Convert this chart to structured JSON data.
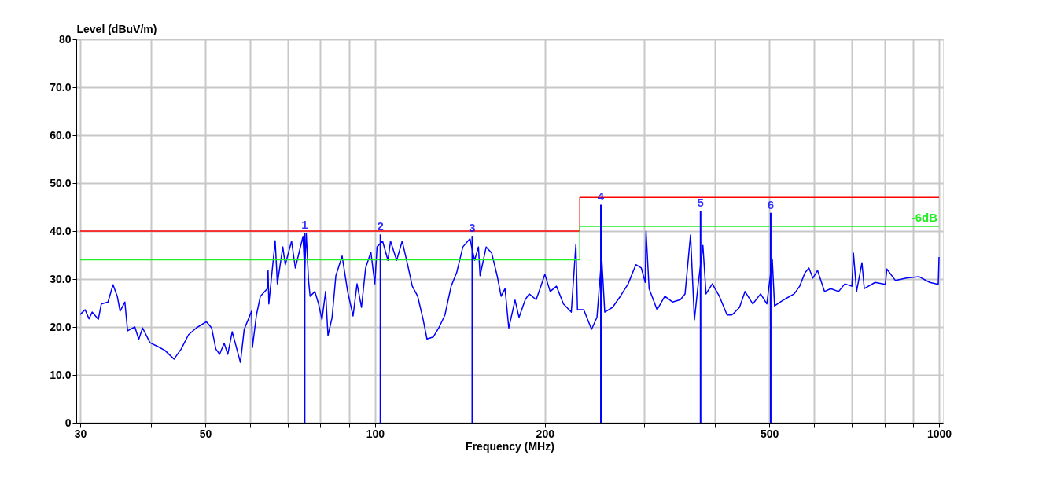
{
  "chart_data": {
    "type": "line",
    "xlabel": "Frequency (MHz)",
    "ylabel": "Level (dBuV/m)",
    "log": "x",
    "xlim": [
      30,
      1000
    ],
    "xticks": [
      30,
      {
        "value": 40,
        "label": null
      },
      50,
      {
        "value": 60,
        "label": null
      },
      {
        "value": 70,
        "label": null
      },
      {
        "value": 80,
        "label": null
      },
      {
        "value": 90,
        "label": null
      },
      100,
      200,
      {
        "value": 300,
        "label": null
      },
      {
        "value": 400,
        "label": null
      },
      500,
      {
        "value": 600,
        "label": null
      },
      {
        "value": 700,
        "label": null
      },
      {
        "value": 800,
        "label": null
      },
      {
        "value": 900,
        "label": null
      },
      1000
    ],
    "ylim": [
      0,
      80
    ],
    "yticks": [
      0,
      {
        "value": 10,
        "label": "10.0"
      },
      {
        "value": 20,
        "label": "20.0"
      },
      {
        "value": 30,
        "label": "30.0"
      },
      {
        "value": 40,
        "label": "40.0"
      },
      {
        "value": 50,
        "label": "50.0"
      },
      {
        "value": 60,
        "label": "60.0"
      },
      {
        "value": 70,
        "label": "70.0"
      },
      80
    ],
    "grid": true,
    "line_style": "solid",
    "marker": "none",
    "series": [
      {
        "type": "line",
        "color": "#0000ff",
        "x": [
          30,
          30.6,
          31.1,
          31.5,
          32.3,
          32.7,
          33.6,
          34.3,
          34.9,
          35.3,
          36.0,
          36.4,
          37.5,
          38.1,
          38.7,
          39.9,
          41.2,
          42.4,
          44.0,
          45.3,
          46.7,
          48.2,
          50.2,
          51.3,
          52.2,
          53.0,
          54.0,
          54.8,
          55.8,
          57.7,
          58.6,
          60.4,
          60.6,
          61.6,
          62.6,
          64.4,
          64.6,
          64.8,
          66.5,
          67.1,
          68.6,
          69.3,
          71.1,
          72.2,
          74.5,
          75.0,
          75.5,
          76.2,
          76.7,
          78.2,
          79.4,
          80.5,
          81.7,
          82.5,
          83.9,
          85.2,
          87.4,
          89.4,
          91.4,
          92.9,
          94.6,
          96.2,
          98.3,
          99.9,
          100.8,
          103.1,
          105.4,
          106.5,
          109.2,
          111.7,
          114.2,
          116.4,
          119.0,
          121.7,
          123.6,
          126.8,
          129.7,
          133.0,
          136.4,
          139.5,
          143.1,
          147.3,
          150.1,
          152.5,
          153.5,
          157.4,
          161.0,
          164.6,
          167.3,
          170.0,
          172.6,
          177.1,
          180.0,
          184.6,
          187.6,
          193.0,
          196.1,
          200.0,
          204.4,
          209.7,
          215.8,
          222.8,
          227.0,
          228.5,
          234.4,
          242.0,
          247.4,
          252.2,
          255.4,
          263.7,
          272.2,
          281.0,
          290.0,
          296.5,
          301.3,
          302.3,
          306.1,
          316.2,
          326.4,
          337.0,
          347.8,
          354.5,
          362.5,
          368.3,
          374.1,
          381.3,
          386.2,
          396.3,
          407.8,
          420.9,
          429.0,
          434.6,
          442.8,
          452.9,
          467.4,
          482.6,
          495.0,
          506.2,
          510.9,
          531.0,
          553.5,
          566.0,
          578.5,
          587.9,
          597.3,
          608.9,
          626.5,
          642.6,
          663.6,
          680.7,
          700.6,
          705.1,
          714.1,
          730.0,
          737.0,
          770.4,
          803.1,
          808.1,
          837.0,
          875.1,
          920.8,
          962.7,
          996.8,
          1000
        ],
        "values": [
          22.6,
          23.6,
          21.7,
          23.1,
          21.6,
          24.8,
          25.2,
          28.8,
          26.4,
          23.3,
          25.2,
          19.2,
          20.0,
          17.4,
          19.8,
          16.7,
          15.9,
          15.1,
          13.3,
          15.4,
          18.4,
          19.8,
          21.1,
          19.8,
          15.4,
          14.3,
          16.6,
          14.3,
          19.0,
          12.6,
          19.5,
          23.3,
          15.7,
          22.5,
          26.4,
          28.0,
          31.8,
          24.8,
          38.0,
          29.0,
          36.7,
          33.0,
          37.9,
          32.3,
          38.9,
          31.8,
          39.5,
          29.7,
          26.4,
          27.4,
          24.8,
          21.5,
          27.4,
          18.2,
          22.0,
          30.7,
          34.8,
          27.4,
          22.3,
          29.0,
          24.1,
          32.3,
          35.6,
          29.0,
          36.7,
          37.9,
          33.9,
          37.9,
          33.9,
          37.9,
          33.0,
          28.5,
          26.4,
          21.5,
          17.5,
          17.9,
          19.8,
          22.5,
          28.5,
          31.3,
          36.7,
          38.4,
          33.9,
          36.7,
          30.7,
          36.7,
          35.4,
          30.7,
          26.4,
          28.0,
          19.8,
          25.6,
          22.0,
          25.7,
          26.9,
          25.7,
          28.0,
          31.0,
          27.4,
          28.5,
          24.8,
          23.1,
          37.2,
          23.6,
          23.6,
          19.5,
          22.0,
          34.6,
          23.1,
          24.1,
          26.4,
          29.0,
          33.0,
          32.3,
          29.3,
          40.0,
          28.0,
          23.6,
          26.4,
          25.2,
          25.7,
          26.9,
          39.2,
          21.5,
          29.0,
          37.0,
          26.9,
          29.0,
          26.4,
          22.5,
          22.5,
          23.1,
          24.1,
          27.4,
          24.8,
          26.9,
          24.8,
          34.0,
          24.4,
          25.7,
          26.9,
          28.5,
          31.3,
          32.3,
          30.2,
          31.8,
          27.4,
          28.0,
          27.4,
          29.0,
          28.5,
          35.4,
          27.4,
          33.4,
          28.0,
          29.3,
          28.9,
          32.1,
          29.7,
          30.2,
          30.5,
          29.3,
          28.9,
          34.6
        ]
      },
      {
        "type": "step",
        "color": "#ff0000",
        "x": [
          30,
          230.7,
          1000
        ],
        "values": [
          40,
          47,
          47
        ]
      },
      {
        "type": "step",
        "name": "-6dB",
        "color": "#22ee22",
        "x": [
          30,
          230.7,
          1000
        ],
        "values": [
          34,
          41,
          41
        ]
      },
      {
        "type": "bar",
        "color": "#0000ff",
        "x": [
          75.0,
          102.2,
          148.7,
          251.4,
          377.7,
          502.9
        ],
        "values": [
          39.6,
          39.3,
          39.0,
          45.5,
          44.2,
          43.8
        ]
      }
    ],
    "annotations": [
      {
        "text": "1",
        "x": 75.0,
        "y": 39.6
      },
      {
        "text": "2",
        "x": 102.2,
        "y": 39.3
      },
      {
        "text": "3",
        "x": 148.7,
        "y": 39.0
      },
      {
        "text": "4",
        "x": 251.4,
        "y": 45.5
      },
      {
        "text": "5",
        "x": 377.7,
        "y": 44.2
      },
      {
        "text": "6",
        "x": 502.9,
        "y": 43.8
      }
    ]
  }
}
